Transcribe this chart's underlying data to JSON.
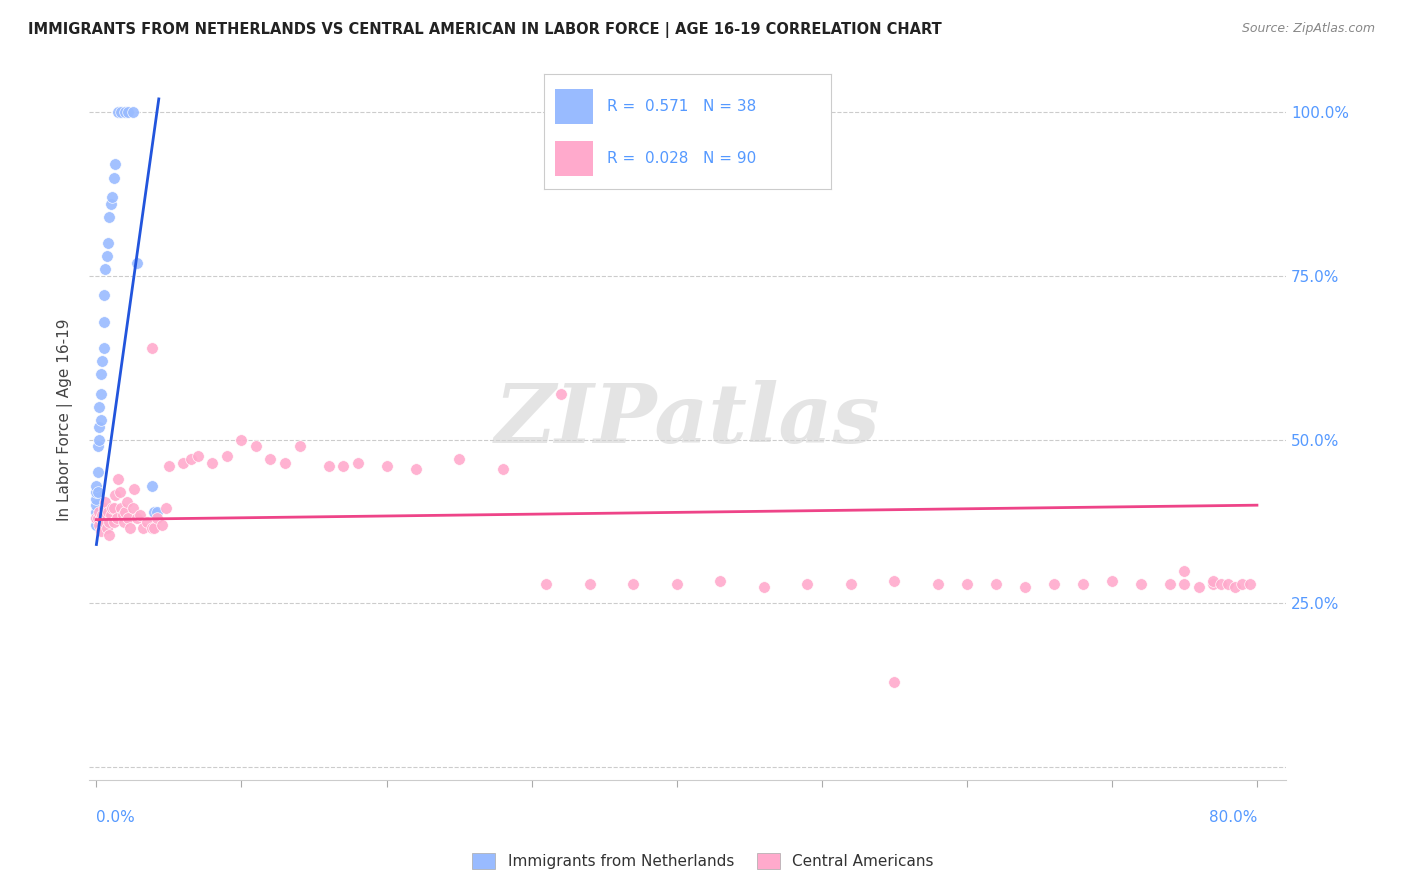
{
  "title": "IMMIGRANTS FROM NETHERLANDS VS CENTRAL AMERICAN IN LABOR FORCE | AGE 16-19 CORRELATION CHART",
  "source": "Source: ZipAtlas.com",
  "ylabel": "In Labor Force | Age 16-19",
  "color_blue": "#99bbff",
  "color_pink": "#ffaacc",
  "color_blue_line": "#2255dd",
  "color_pink_line": "#ee4488",
  "R_blue": 0.571,
  "N_blue": 38,
  "R_pink": 0.028,
  "N_pink": 90,
  "blue_x": [
    0.0,
    0.0,
    0.0,
    0.0,
    0.0,
    0.0,
    0.0,
    0.001,
    0.001,
    0.001,
    0.001,
    0.002,
    0.002,
    0.002,
    0.003,
    0.003,
    0.003,
    0.004,
    0.005,
    0.005,
    0.005,
    0.006,
    0.007,
    0.008,
    0.009,
    0.01,
    0.011,
    0.012,
    0.013,
    0.015,
    0.017,
    0.02,
    0.022,
    0.025,
    0.028,
    0.038,
    0.04,
    0.042
  ],
  "blue_y": [
    0.37,
    0.38,
    0.39,
    0.4,
    0.41,
    0.42,
    0.43,
    0.38,
    0.42,
    0.45,
    0.49,
    0.5,
    0.52,
    0.55,
    0.53,
    0.57,
    0.6,
    0.62,
    0.64,
    0.68,
    0.72,
    0.76,
    0.78,
    0.8,
    0.84,
    0.86,
    0.87,
    0.9,
    0.92,
    1.0,
    1.0,
    1.0,
    1.0,
    1.0,
    0.77,
    0.43,
    0.39,
    0.39
  ],
  "pink_x": [
    0.0,
    0.001,
    0.002,
    0.002,
    0.003,
    0.003,
    0.004,
    0.005,
    0.005,
    0.006,
    0.007,
    0.007,
    0.008,
    0.009,
    0.009,
    0.01,
    0.011,
    0.012,
    0.012,
    0.013,
    0.014,
    0.015,
    0.016,
    0.017,
    0.018,
    0.019,
    0.02,
    0.021,
    0.022,
    0.023,
    0.025,
    0.026,
    0.028,
    0.03,
    0.032,
    0.035,
    0.038,
    0.04,
    0.042,
    0.045,
    0.048,
    0.05,
    0.06,
    0.065,
    0.07,
    0.08,
    0.09,
    0.1,
    0.11,
    0.12,
    0.13,
    0.14,
    0.16,
    0.17,
    0.18,
    0.2,
    0.22,
    0.25,
    0.28,
    0.31,
    0.34,
    0.37,
    0.4,
    0.43,
    0.46,
    0.49,
    0.52,
    0.55,
    0.58,
    0.6,
    0.62,
    0.64,
    0.66,
    0.68,
    0.7,
    0.72,
    0.74,
    0.75,
    0.76,
    0.77,
    0.77,
    0.775,
    0.78,
    0.785,
    0.79,
    0.795,
    0.038,
    0.32,
    0.55,
    0.75
  ],
  "pink_y": [
    0.38,
    0.38,
    0.37,
    0.39,
    0.38,
    0.36,
    0.385,
    0.375,
    0.395,
    0.405,
    0.385,
    0.365,
    0.39,
    0.375,
    0.355,
    0.385,
    0.395,
    0.375,
    0.395,
    0.415,
    0.38,
    0.44,
    0.42,
    0.395,
    0.385,
    0.375,
    0.39,
    0.405,
    0.38,
    0.365,
    0.395,
    0.425,
    0.38,
    0.385,
    0.365,
    0.375,
    0.365,
    0.365,
    0.38,
    0.37,
    0.395,
    0.46,
    0.465,
    0.47,
    0.475,
    0.465,
    0.475,
    0.5,
    0.49,
    0.47,
    0.465,
    0.49,
    0.46,
    0.46,
    0.465,
    0.46,
    0.455,
    0.47,
    0.455,
    0.28,
    0.28,
    0.28,
    0.28,
    0.285,
    0.275,
    0.28,
    0.28,
    0.285,
    0.28,
    0.28,
    0.28,
    0.275,
    0.28,
    0.28,
    0.285,
    0.28,
    0.28,
    0.28,
    0.275,
    0.28,
    0.285,
    0.28,
    0.28,
    0.275,
    0.28,
    0.28,
    0.64,
    0.57,
    0.13,
    0.3
  ],
  "blue_line_x": [
    0.0,
    0.043
  ],
  "blue_line_y": [
    0.34,
    1.02
  ],
  "pink_line_x": [
    0.0,
    0.8
  ],
  "pink_line_y": [
    0.378,
    0.4
  ],
  "xlim": [
    -0.005,
    0.82
  ],
  "ylim": [
    -0.02,
    1.08
  ],
  "xticks": [
    0.0,
    0.1,
    0.2,
    0.3,
    0.4,
    0.5,
    0.6,
    0.7,
    0.8
  ],
  "yticks": [
    0.0,
    0.25,
    0.5,
    0.75,
    1.0
  ],
  "right_ylabels": [
    "",
    "25.0%",
    "50.0%",
    "75.0%",
    "100.0%"
  ],
  "axis_color": "#5599ff",
  "watermark": "ZIPatlas",
  "legend_R_blue_text": "R =  0.571   N = 38",
  "legend_R_pink_text": "R =  0.028   N = 90",
  "bottom_label_blue": "Immigrants from Netherlands",
  "bottom_label_pink": "Central Americans"
}
